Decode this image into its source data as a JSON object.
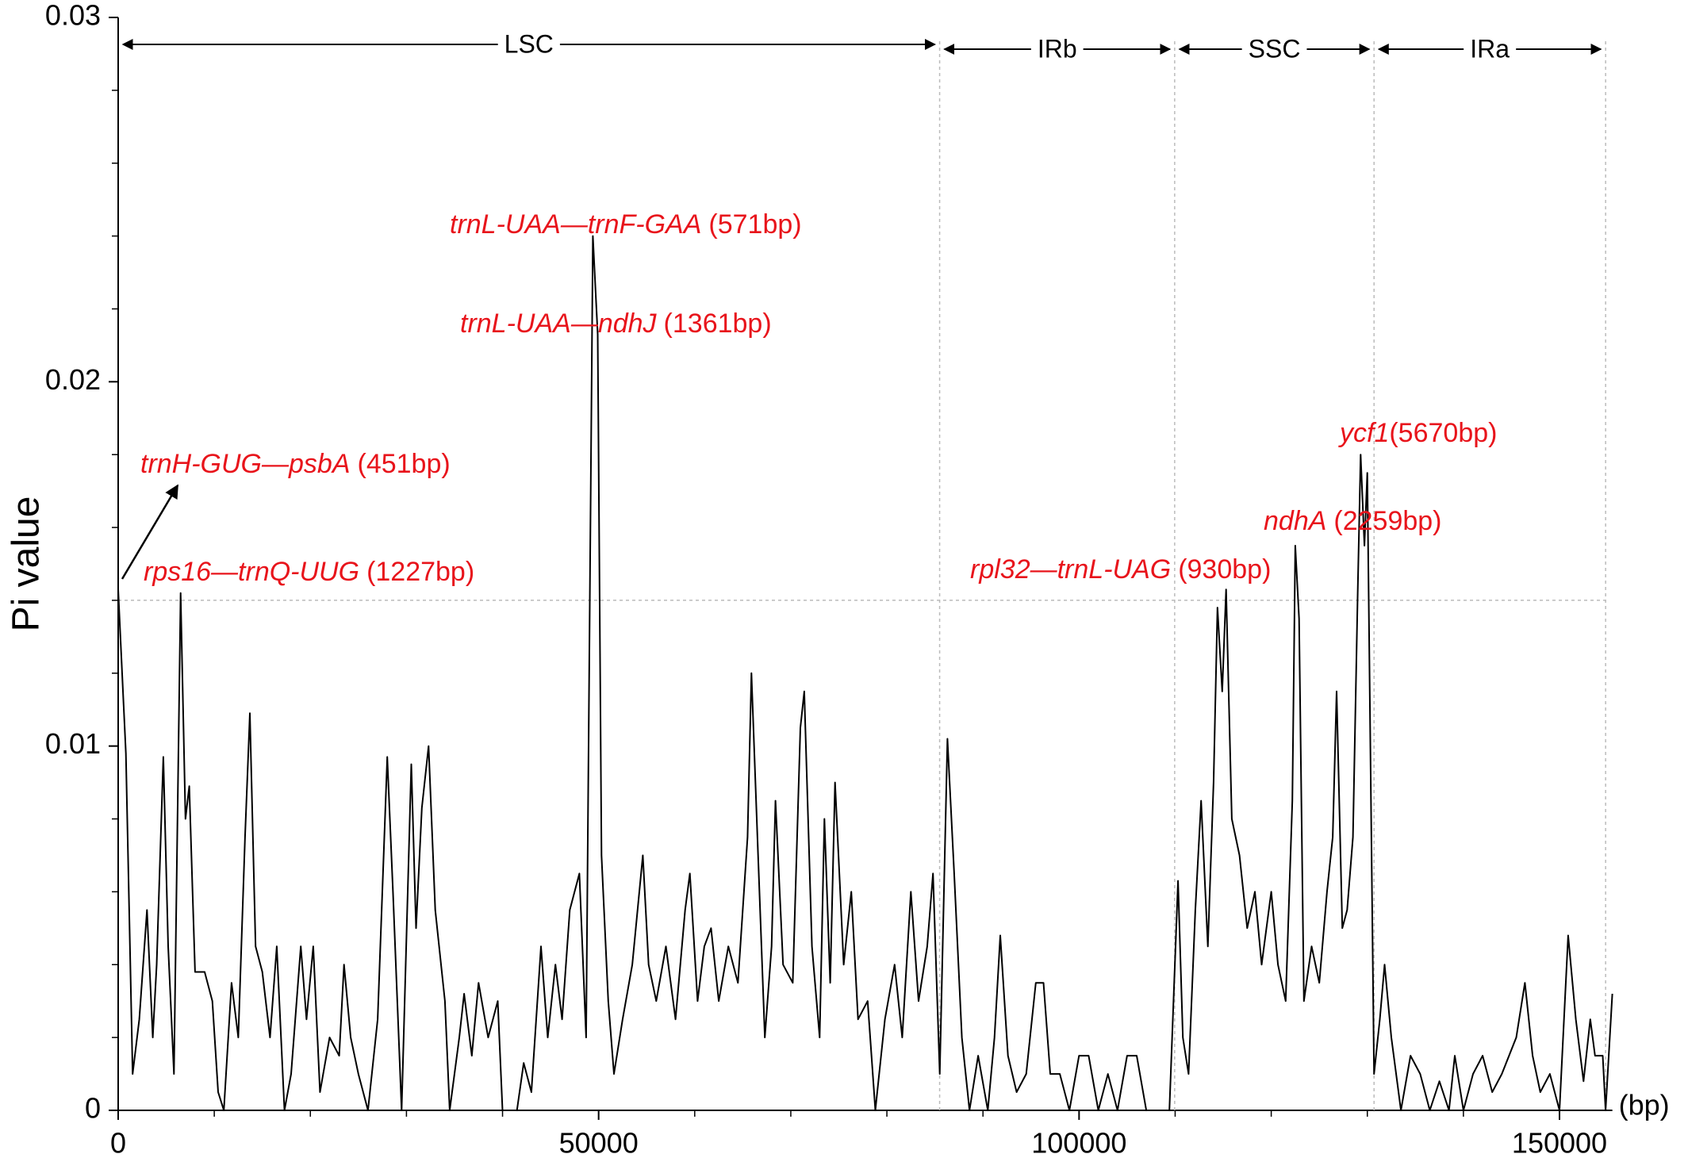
{
  "chart_data": {
    "type": "line",
    "ylabel": "Pi value",
    "xlabel": "(bp)",
    "xlim": [
      0,
      155500
    ],
    "ylim": [
      0,
      0.03
    ],
    "xticks": [
      0,
      50000,
      100000,
      150000
    ],
    "xticks_minor": [
      10000,
      20000,
      30000,
      40000,
      60000,
      70000,
      80000,
      90000,
      110000,
      120000,
      130000,
      140000
    ],
    "yticks": [
      0,
      0.01,
      0.02,
      0.03
    ],
    "yticks_minor": [
      0.002,
      0.004,
      0.006,
      0.008,
      0.012,
      0.014,
      0.016,
      0.018,
      0.022,
      0.024,
      0.026,
      0.028
    ],
    "threshold": 0.014,
    "boundaries": [
      85490,
      109950,
      130700,
      154800
    ],
    "regions": [
      "LSC",
      "IRb",
      "SSC",
      "IRa"
    ],
    "color": "#000000",
    "annotation_color": "#e8141b",
    "annotations": [
      {
        "gene": "trnL-UAA—trnF-GAA",
        "size": "(571bp)"
      },
      {
        "gene": "trnL-UAA—ndhJ",
        "size": "(1361bp)"
      },
      {
        "gene": "trnH-GUG—psbA",
        "size": "(451bp)"
      },
      {
        "gene": "rps16—trnQ-UUG",
        "size": "(1227bp)"
      },
      {
        "gene": "rpl32—trnL-UAG",
        "size": "(930bp)"
      },
      {
        "gene": "ndhA",
        "size": "(2259bp)"
      },
      {
        "gene": "ycf1",
        "size": "(5670bp)"
      }
    ],
    "x": [
      0,
      800,
      1500,
      2200,
      3000,
      3600,
      4000,
      4700,
      5200,
      5800,
      6500,
      7000,
      7400,
      8000,
      9000,
      9800,
      10400,
      11000,
      11800,
      12500,
      13200,
      13700,
      14300,
      15000,
      15800,
      16500,
      17300,
      18000,
      19000,
      19600,
      20300,
      21000,
      22000,
      23000,
      23500,
      24200,
      25000,
      26000,
      27000,
      28000,
      28600,
      29500,
      30500,
      31000,
      31600,
      32300,
      33000,
      34000,
      34500,
      35500,
      36000,
      36800,
      37500,
      38500,
      39500,
      40000,
      41500,
      42200,
      43000,
      44000,
      44700,
      45500,
      46200,
      47000,
      48000,
      48700,
      49400,
      49900,
      50300,
      51000,
      51600,
      52500,
      53500,
      54600,
      55200,
      56000,
      57000,
      58000,
      59000,
      59500,
      60300,
      61000,
      61700,
      62500,
      63500,
      64500,
      65500,
      65900,
      66600,
      67300,
      68000,
      68400,
      69200,
      70200,
      71000,
      71400,
      72200,
      73000,
      73500,
      74100,
      74600,
      75500,
      76300,
      77000,
      78000,
      78800,
      79800,
      80800,
      81600,
      82500,
      83300,
      84200,
      84800,
      85500,
      86300,
      87000,
      87800,
      88600,
      89500,
      90500,
      91200,
      91800,
      92600,
      93500,
      94500,
      95500,
      96300,
      97000,
      98000,
      99000,
      100000,
      101000,
      102000,
      103000,
      104000,
      105000,
      106000,
      107000,
      108000,
      109400,
      110300,
      110800,
      111400,
      112100,
      112700,
      113400,
      114000,
      114400,
      114900,
      115300,
      115900,
      116700,
      117500,
      118300,
      119000,
      120000,
      120700,
      121500,
      122200,
      122500,
      122900,
      123400,
      124200,
      125000,
      125800,
      126400,
      126800,
      127400,
      127900,
      128500,
      129000,
      129300,
      129700,
      130000,
      130400,
      130700,
      131300,
      131800,
      132500,
      133500,
      134500,
      135500,
      136500,
      137500,
      138500,
      139100,
      140000,
      141000,
      142000,
      143000,
      144000,
      145500,
      146400,
      147200,
      148000,
      149000,
      150000,
      150900,
      151700,
      152500,
      153200,
      153700,
      154500,
      154800,
      155500
    ],
    "values": [
      0.0143,
      0.0098,
      0.001,
      0.0025,
      0.0055,
      0.002,
      0.004,
      0.0097,
      0.0045,
      0.001,
      0.0142,
      0.008,
      0.0089,
      0.0038,
      0.0038,
      0.003,
      0.0005,
      0,
      0.0035,
      0.002,
      0.0075,
      0.0109,
      0.0045,
      0.0038,
      0.002,
      0.0045,
      0,
      0.001,
      0.0045,
      0.0025,
      0.0045,
      0.0005,
      0.002,
      0.0015,
      0.004,
      0.002,
      0.001,
      0,
      0.0025,
      0.0097,
      0.006,
      0,
      0.0095,
      0.005,
      0.0083,
      0.01,
      0.0055,
      0.003,
      0,
      0.002,
      0.0032,
      0.0015,
      0.0035,
      0.002,
      0.003,
      0,
      0,
      0.0013,
      0.0005,
      0.0045,
      0.002,
      0.004,
      0.0025,
      0.0055,
      0.0065,
      0.002,
      0.024,
      0.0213,
      0.007,
      0.003,
      0.001,
      0.0025,
      0.004,
      0.007,
      0.004,
      0.003,
      0.0045,
      0.0025,
      0.0055,
      0.0065,
      0.003,
      0.0045,
      0.005,
      0.003,
      0.0045,
      0.0035,
      0.0075,
      0.012,
      0.007,
      0.002,
      0.0045,
      0.0085,
      0.004,
      0.0035,
      0.0105,
      0.0115,
      0.0045,
      0.002,
      0.008,
      0.0035,
      0.009,
      0.004,
      0.006,
      0.0025,
      0.003,
      0,
      0.0025,
      0.004,
      0.002,
      0.006,
      0.003,
      0.0045,
      0.0065,
      0.001,
      0.0102,
      0.0065,
      0.002,
      0,
      0.0015,
      0,
      0.002,
      0.0048,
      0.0015,
      0.0005,
      0.001,
      0.0035,
      0.0035,
      0.001,
      0.001,
      0,
      0.0015,
      0.0015,
      0,
      0.001,
      0,
      0.0015,
      0.0015,
      0,
      0,
      0,
      0.0063,
      0.002,
      0.001,
      0.0055,
      0.0085,
      0.0045,
      0.009,
      0.0138,
      0.0115,
      0.0143,
      0.008,
      0.007,
      0.005,
      0.006,
      0.004,
      0.006,
      0.004,
      0.003,
      0.0085,
      0.0155,
      0.0135,
      0.003,
      0.0045,
      0.0035,
      0.006,
      0.0075,
      0.0115,
      0.005,
      0.0055,
      0.0075,
      0.0142,
      0.018,
      0.0155,
      0.0175,
      0.008,
      0.001,
      0.0025,
      0.004,
      0.002,
      0,
      0.0015,
      0.001,
      0,
      0.0008,
      0,
      0.0015,
      0,
      0.001,
      0.0015,
      0.0005,
      0.001,
      0.002,
      0.0035,
      0.0015,
      0.0005,
      0.001,
      0,
      0.0048,
      0.0025,
      0.0008,
      0.0025,
      0.0015,
      0.0015,
      0,
      0.0032
    ]
  }
}
